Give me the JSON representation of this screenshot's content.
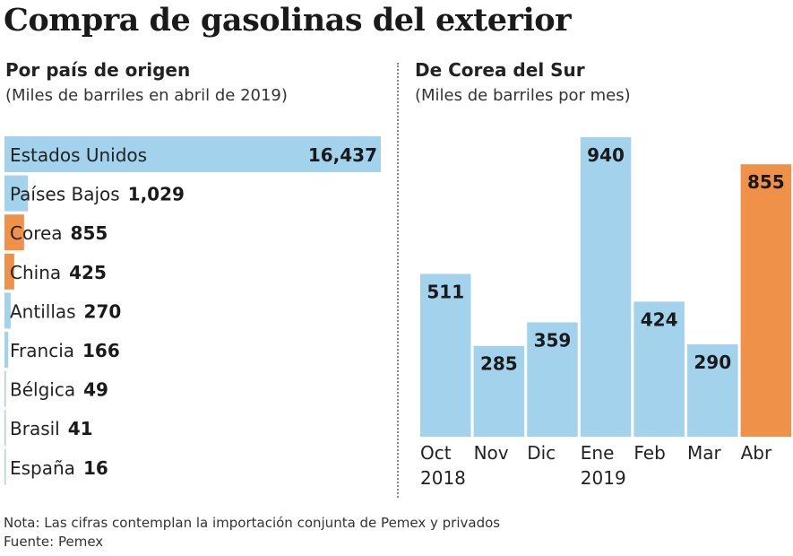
{
  "title": "Compra de gasolinas del exterior",
  "note": "Nota: Las cifras contemplan la importación conjunta de Pemex y privados",
  "source": "Fuente: Pemex",
  "colors": {
    "blue": "#a3d3ec",
    "orange": "#f0914a"
  },
  "chart_data": [
    {
      "type": "bar",
      "orientation": "horizontal",
      "title": "Por país de origen",
      "subtitle": "(Miles de barriles en abril de 2019)",
      "categories": [
        "Estados Unidos",
        "Países Bajos",
        "Corea",
        "China",
        "Antillas",
        "Francia",
        "Bélgica",
        "Brasil",
        "España"
      ],
      "values": [
        16437,
        1029,
        855,
        425,
        270,
        166,
        49,
        41,
        16
      ],
      "value_labels": [
        "16,437",
        "1,029",
        "855",
        "425",
        "270",
        "166",
        "49",
        "41",
        "16"
      ],
      "highlight": [
        "Corea",
        "China"
      ],
      "grid": false
    },
    {
      "type": "bar",
      "orientation": "vertical",
      "title": "De Corea del Sur",
      "subtitle": "(Miles de barriles por mes)",
      "categories": [
        [
          "Oct",
          "2018"
        ],
        [
          "Nov",
          ""
        ],
        [
          "Dic",
          ""
        ],
        [
          "Ene",
          "2019"
        ],
        [
          "Feb",
          ""
        ],
        [
          "Mar",
          ""
        ],
        [
          "Abr",
          ""
        ]
      ],
      "values": [
        511,
        285,
        359,
        940,
        424,
        290,
        855
      ],
      "highlight": [
        "Abr"
      ],
      "grid": false
    }
  ]
}
